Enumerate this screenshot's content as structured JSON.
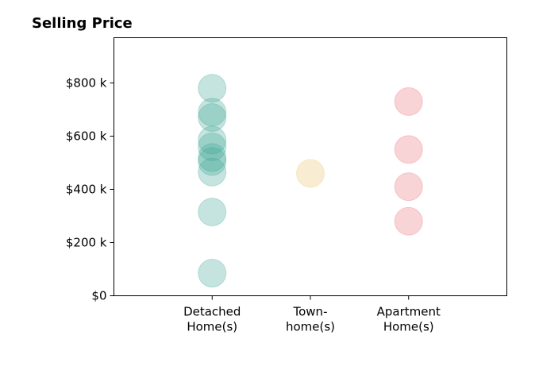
{
  "chart_data": {
    "type": "scatter",
    "title": "Selling Price",
    "xlabel": "",
    "ylabel": "",
    "categories": [
      [
        "Detached",
        "Home(s)"
      ],
      [
        "Town-",
        "home(s)"
      ],
      [
        "Apartment",
        "Home(s)"
      ]
    ],
    "x_ticks": [
      1,
      2,
      3
    ],
    "xlim": [
      0,
      4
    ],
    "ylim": [
      0,
      970000
    ],
    "y_ticks": [
      0,
      200000,
      400000,
      600000,
      800000
    ],
    "y_tick_labels": [
      "$0",
      "$200 k",
      "$400 k",
      "$600 k",
      "$800 k"
    ],
    "grid": false,
    "legend": "none",
    "marker_alpha": 0.3,
    "points": [
      {
        "category": 1,
        "y": 780000,
        "color": "#3fa796"
      },
      {
        "category": 1,
        "y": 690000,
        "color": "#3fa796"
      },
      {
        "category": 1,
        "y": 670000,
        "color": "#3fa796"
      },
      {
        "category": 1,
        "y": 585000,
        "color": "#3fa796"
      },
      {
        "category": 1,
        "y": 560000,
        "color": "#3fa796"
      },
      {
        "category": 1,
        "y": 520000,
        "color": "#3fa796"
      },
      {
        "category": 1,
        "y": 505000,
        "color": "#3fa796"
      },
      {
        "category": 1,
        "y": 465000,
        "color": "#3fa796"
      },
      {
        "category": 1,
        "y": 315000,
        "color": "#3fa796"
      },
      {
        "category": 1,
        "y": 85000,
        "color": "#3fa796"
      },
      {
        "category": 2,
        "y": 460000,
        "color": "#e9c46a"
      },
      {
        "category": 3,
        "y": 730000,
        "color": "#e76f7a"
      },
      {
        "category": 3,
        "y": 550000,
        "color": "#e76f7a"
      },
      {
        "category": 3,
        "y": 410000,
        "color": "#e76f7a"
      },
      {
        "category": 3,
        "y": 280000,
        "color": "#e76f7a"
      }
    ]
  }
}
